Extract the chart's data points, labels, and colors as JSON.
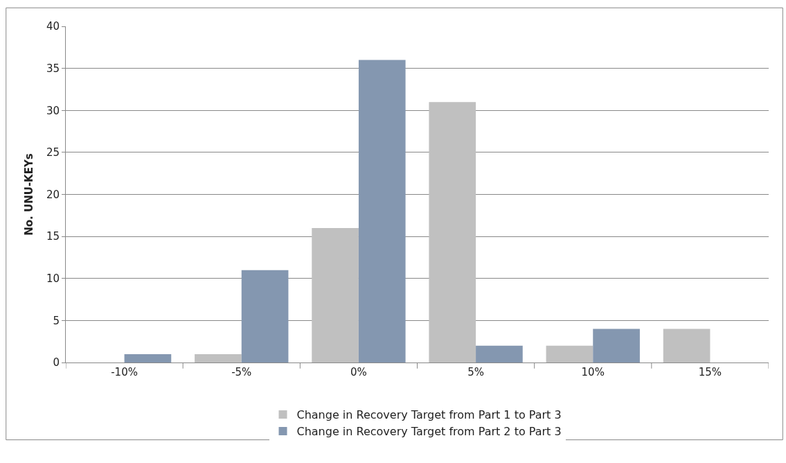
{
  "chart_data": {
    "type": "bar",
    "ylabel": "No. UNU-KEYs",
    "categories": [
      "-10%",
      "-5%",
      "0%",
      "5%",
      "10%",
      "15%"
    ],
    "series": [
      {
        "name": "Change in Recovery Target from Part 1 to Part 3",
        "color": "#c0c0c0",
        "values": [
          0,
          1,
          16,
          31,
          2,
          4
        ]
      },
      {
        "name": "Change in Recovery Target from Part 2 to Part 3",
        "color": "#8497b0",
        "values": [
          1,
          11,
          36,
          2,
          4,
          0
        ]
      }
    ],
    "ylim": [
      0,
      40
    ],
    "yticks": [
      0,
      5,
      10,
      15,
      20,
      25,
      30,
      35,
      40
    ],
    "grid": "y",
    "legend": "bottom"
  }
}
